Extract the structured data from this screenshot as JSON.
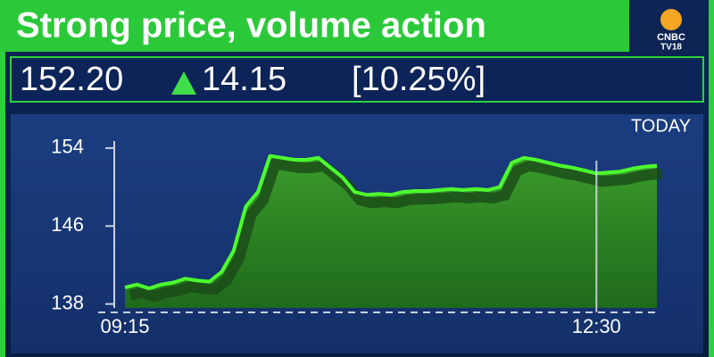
{
  "header": {
    "title": "Strong price, volume action",
    "logo": [
      "CNBC",
      "TV18"
    ]
  },
  "quote": {
    "price": "152.20",
    "change": "14.15",
    "percent": "[10.25%]"
  },
  "chart_data": {
    "type": "area",
    "annotation": "TODAY",
    "color": "#4dff2e",
    "categories": [
      "09:15",
      null,
      null,
      null,
      null,
      null,
      null,
      null,
      null,
      null,
      null,
      null,
      null,
      null,
      null,
      null,
      null,
      null,
      null,
      null,
      null,
      null,
      null,
      null,
      null,
      null,
      null,
      null,
      null,
      null,
      null,
      null,
      null,
      null,
      null,
      null,
      null,
      null,
      null,
      "12:30",
      null,
      null,
      null,
      null,
      null
    ],
    "values": [
      139.7,
      140.0,
      139.6,
      140.0,
      140.2,
      140.6,
      140.4,
      140.3,
      141.3,
      143.5,
      148.0,
      149.5,
      153.2,
      153.0,
      152.8,
      152.8,
      153.0,
      152.0,
      151.0,
      149.5,
      149.2,
      149.3,
      149.2,
      149.5,
      149.6,
      149.6,
      149.7,
      149.8,
      149.7,
      149.8,
      149.7,
      150.0,
      152.5,
      153.0,
      152.8,
      152.5,
      152.2,
      152.0,
      151.7,
      151.4,
      151.5,
      151.6,
      151.9,
      152.1,
      152.2
    ],
    "ylim": [
      137.6,
      155.0
    ],
    "yticks": [
      138,
      146,
      154
    ],
    "grid": false
  }
}
